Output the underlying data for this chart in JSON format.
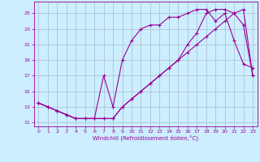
{
  "bg_color": "#cceeff",
  "grid_color": "#aabbcc",
  "line_color": "#990099",
  "xlim": [
    -0.5,
    23.5
  ],
  "ylim": [
    10.5,
    26.5
  ],
  "yticks": [
    11,
    13,
    15,
    17,
    19,
    21,
    23,
    25
  ],
  "xticks": [
    0,
    1,
    2,
    3,
    4,
    5,
    6,
    7,
    8,
    9,
    10,
    11,
    12,
    13,
    14,
    15,
    16,
    17,
    18,
    19,
    20,
    21,
    22,
    23
  ],
  "xlabel": "Windchill (Refroidissement éolien,°C)",
  "line1_x": [
    0,
    1,
    2,
    3,
    4,
    5,
    6,
    7,
    8,
    9,
    10,
    11,
    12,
    13,
    14,
    15,
    16,
    17,
    18,
    19,
    20,
    21,
    22,
    23
  ],
  "line1_y": [
    13.5,
    13.0,
    12.5,
    12.0,
    11.5,
    11.5,
    11.5,
    11.5,
    11.5,
    13.0,
    14.0,
    15.0,
    16.0,
    17.0,
    18.0,
    19.0,
    21.0,
    22.5,
    25.0,
    25.5,
    25.5,
    25.0,
    23.5,
    17.0
  ],
  "line2_x": [
    0,
    1,
    2,
    3,
    4,
    5,
    6,
    7,
    8,
    9,
    10,
    11,
    12,
    13,
    14,
    15,
    16,
    17,
    18,
    19,
    20,
    21,
    22,
    23
  ],
  "line2_y": [
    13.5,
    13.0,
    12.5,
    12.0,
    11.5,
    11.5,
    11.5,
    17.0,
    13.0,
    19.0,
    21.5,
    23.0,
    23.5,
    23.5,
    24.5,
    24.5,
    25.0,
    25.5,
    25.5,
    24.0,
    25.0,
    21.5,
    18.5,
    18.0
  ],
  "line3_x": [
    0,
    1,
    2,
    3,
    4,
    5,
    6,
    7,
    8,
    9,
    10,
    11,
    12,
    13,
    14,
    15,
    16,
    17,
    18,
    19,
    20,
    21,
    22,
    23
  ],
  "line3_y": [
    13.5,
    13.0,
    12.5,
    12.0,
    11.5,
    11.5,
    11.5,
    11.5,
    11.5,
    13.0,
    14.0,
    15.0,
    16.0,
    17.0,
    18.0,
    19.0,
    20.0,
    21.0,
    22.0,
    23.0,
    24.0,
    25.0,
    25.5,
    17.0
  ]
}
